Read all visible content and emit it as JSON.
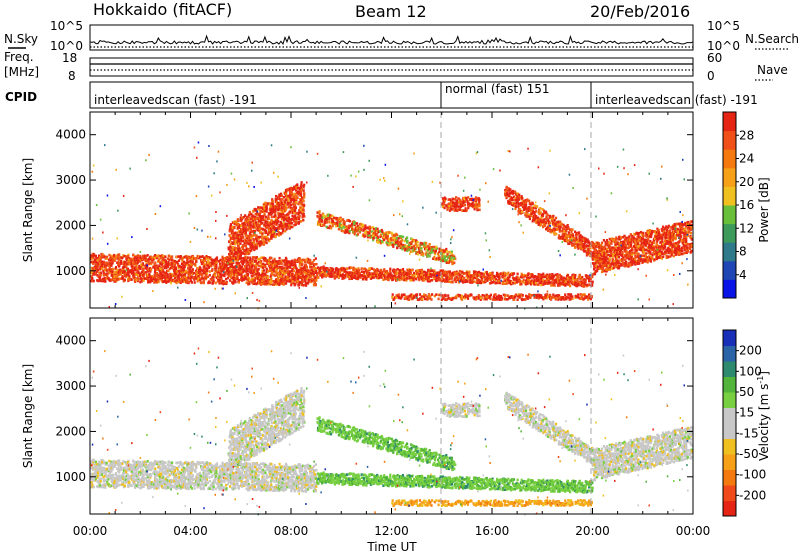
{
  "header": {
    "left": "Hokkaido (fitACF)",
    "center": "Beam 12",
    "right": "20/Feb/2016"
  },
  "status_panel": {
    "left_label": "N.Sky",
    "right_label": "N.Search",
    "y_ticks_left": [
      "10^5",
      "10^0"
    ],
    "y_ticks_right": [
      "10^5",
      "10^0"
    ]
  },
  "freq_panel": {
    "left_label_top": "Freq.",
    "left_label_bottom": "[MHz]",
    "right_label": "Nave",
    "y_ticks_left": [
      "18",
      "8"
    ],
    "y_ticks_right": [
      "60",
      "0"
    ]
  },
  "cpid": {
    "label": "CPID",
    "segments": [
      {
        "text": "interleavedscan (fast) -191",
        "start_hour": 0.0
      },
      {
        "text": "normal (fast) 151",
        "start_hour": 14.0
      },
      {
        "text": "interleavedscan (fast) -191",
        "start_hour": 20.0
      }
    ]
  },
  "time_axis": {
    "label": "Time UT",
    "ticks": [
      "00:00",
      "04:00",
      "08:00",
      "12:00",
      "16:00",
      "20:00",
      "00:00"
    ],
    "range_hours": [
      0,
      24
    ]
  },
  "range_axis": {
    "label": "Slant Range [km]",
    "ticks": [
      "1000",
      "2000",
      "3000",
      "4000"
    ],
    "range_km": [
      180,
      4500
    ]
  },
  "power_colorbar": {
    "label": "Power [dB]",
    "ticks": [
      "4",
      "8",
      "12",
      "16",
      "20",
      "24",
      "28"
    ],
    "colors": [
      "#0a14e6",
      "#1e46b4",
      "#2e7a8a",
      "#3c9a5a",
      "#6abf3a",
      "#f0c020",
      "#f6a018",
      "#f47a10",
      "#f05018",
      "#e62414"
    ]
  },
  "velocity_colorbar": {
    "label": "Velocity [m s^-1]",
    "label_main": "Velocity [m s",
    "label_sup": "-1",
    "label_end": "]",
    "ticks": [
      "200",
      "100",
      "50",
      "15",
      "-15",
      "-50",
      "-100",
      "-200"
    ],
    "colors": [
      "#1a2fb8",
      "#2a64a6",
      "#2e8a6e",
      "#52b43a",
      "#78d040",
      "#c8c8c8",
      "#c8c8c8",
      "#f0c020",
      "#f6a018",
      "#f47a10",
      "#f04a1a",
      "#e62414"
    ]
  },
  "chart_data": {
    "type": "heatmap",
    "panels": [
      "power",
      "velocity"
    ],
    "bands": [
      {
        "name": "near-range",
        "start_hour": 0.0,
        "end_hour": 9.0,
        "center_km_start": 1100,
        "center_km_end": 1000,
        "width_km": 600,
        "power_class": "high",
        "velocity_class": "low"
      },
      {
        "name": "morning-spray",
        "start_hour": 5.5,
        "end_hour": 8.5,
        "center_km_start": 1600,
        "center_km_end": 2600,
        "width_km": 900,
        "power_class": "high",
        "velocity_class": "low"
      },
      {
        "name": "noon-band",
        "start_hour": 9.0,
        "end_hour": 14.5,
        "center_km_start": 2200,
        "center_km_end": 1300,
        "width_km": 300,
        "power_class": "mixed",
        "velocity_class": "positive"
      },
      {
        "name": "afternoon-low",
        "start_hour": 9.0,
        "end_hour": 20.0,
        "center_km_start": 1000,
        "center_km_end": 800,
        "width_km": 250,
        "power_class": "high",
        "velocity_class": "positive"
      },
      {
        "name": "near-ground",
        "start_hour": 12.0,
        "end_hour": 20.0,
        "center_km_start": 450,
        "center_km_end": 450,
        "width_km": 120,
        "power_class": "high",
        "velocity_class": "negative"
      },
      {
        "name": "evening-high",
        "start_hour": 16.5,
        "end_hour": 20.5,
        "center_km_start": 2700,
        "center_km_end": 1300,
        "width_km": 400,
        "power_class": "high",
        "velocity_class": "low"
      },
      {
        "name": "late-band",
        "start_hour": 20.0,
        "end_hour": 24.0,
        "center_km_start": 1300,
        "center_km_end": 1800,
        "width_km": 700,
        "power_class": "high",
        "velocity_class": "low"
      },
      {
        "name": "afternoon-patch",
        "start_hour": 14.0,
        "end_hour": 15.5,
        "center_km_start": 2500,
        "center_km_end": 2500,
        "width_km": 300,
        "power_class": "high",
        "velocity_class": "low"
      }
    ]
  }
}
